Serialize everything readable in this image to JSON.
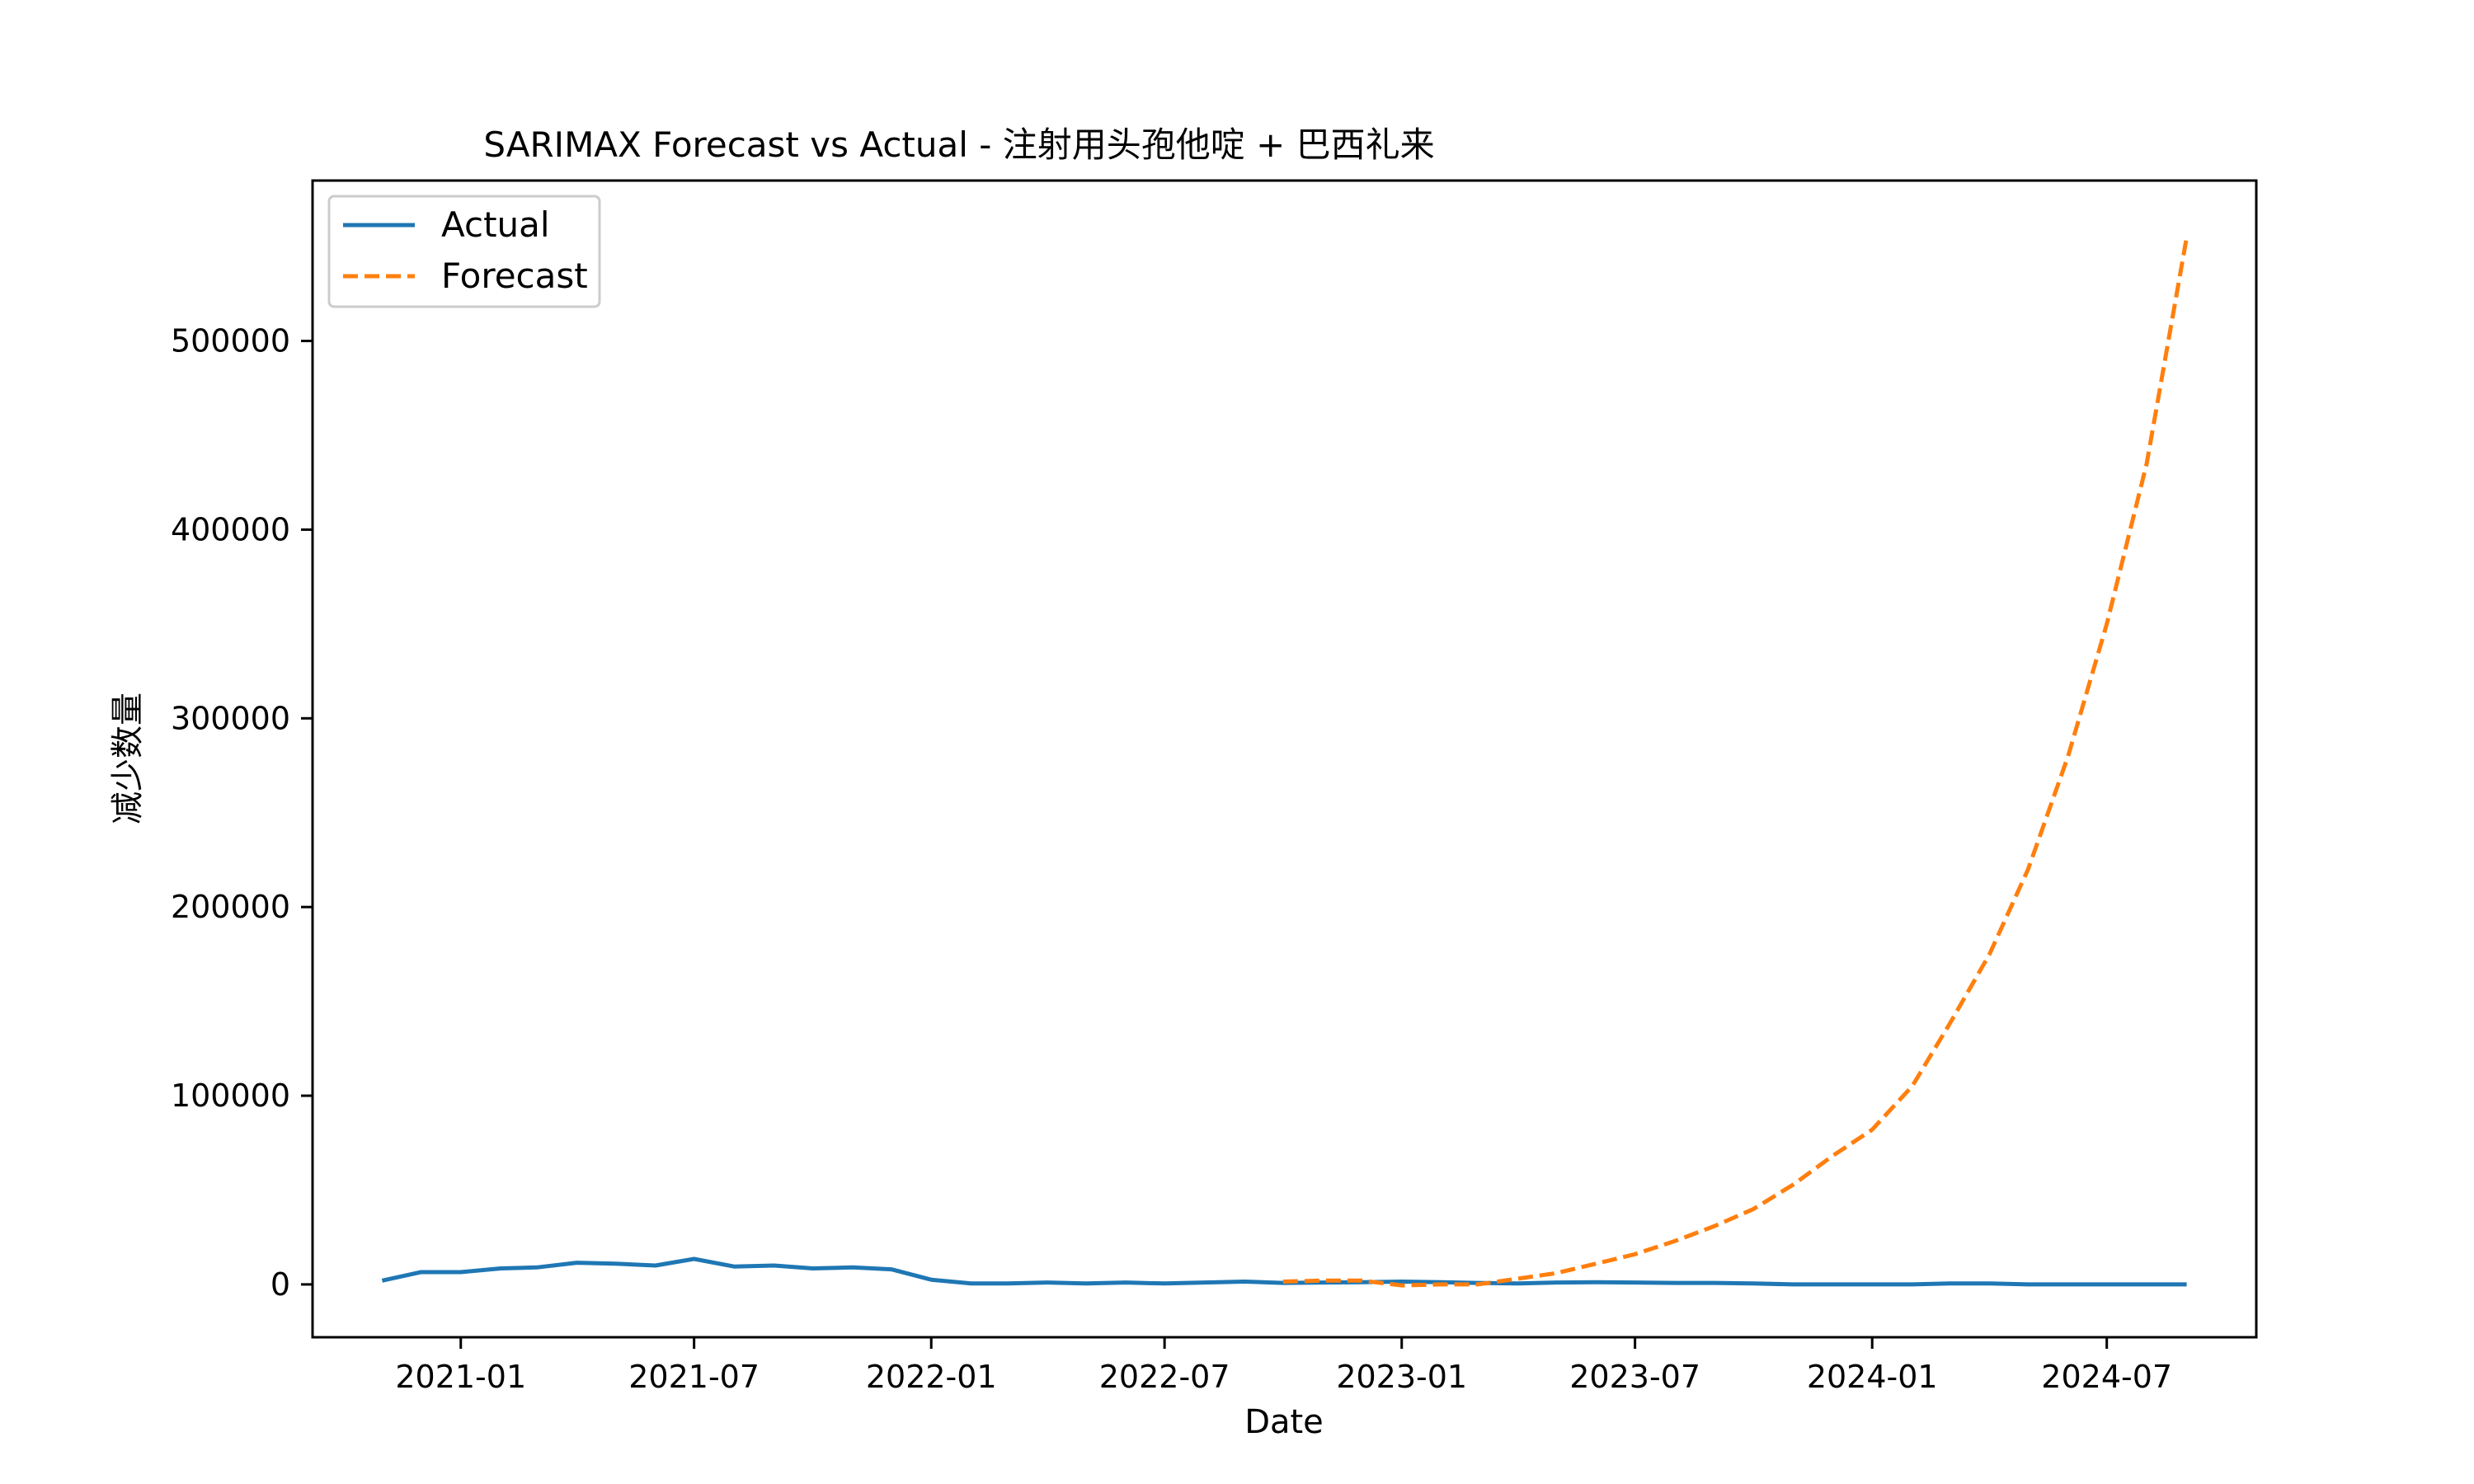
{
  "chart_data": {
    "type": "line",
    "title": "SARIMAX Forecast vs Actual - 注射用头孢他啶 + 巴西礼来",
    "xlabel": "Date",
    "ylabel": "减少数量",
    "x_ticks": [
      "2021-01",
      "2021-07",
      "2022-01",
      "2022-07",
      "2023-01",
      "2023-07",
      "2024-01",
      "2024-07"
    ],
    "y_ticks": [
      "0",
      "100000",
      "200000",
      "300000",
      "400000",
      "500000"
    ],
    "xlim": [
      "2020-09-08",
      "2024-10-25"
    ],
    "ylim": [
      -28000,
      585000
    ],
    "grid": false,
    "legend_position": "top-left",
    "series": [
      {
        "name": "Actual",
        "color": "#1f77b4",
        "style": "solid",
        "x": [
          "2020-11-01",
          "2020-12-01",
          "2021-01-01",
          "2021-02-01",
          "2021-03-01",
          "2021-04-01",
          "2021-05-01",
          "2021-06-01",
          "2021-07-01",
          "2021-08-01",
          "2021-09-01",
          "2021-10-01",
          "2021-11-01",
          "2021-12-01",
          "2022-01-01",
          "2022-02-01",
          "2022-03-01",
          "2022-04-01",
          "2022-05-01",
          "2022-06-01",
          "2022-07-01",
          "2022-08-01",
          "2022-09-01",
          "2022-10-01",
          "2022-11-01",
          "2022-12-01",
          "2023-01-01",
          "2023-02-01",
          "2023-03-01",
          "2023-04-01",
          "2023-05-01",
          "2023-06-01",
          "2023-07-01",
          "2023-08-01",
          "2023-09-01",
          "2023-10-01",
          "2023-11-01",
          "2023-12-01",
          "2024-01-01",
          "2024-02-01",
          "2024-03-01",
          "2024-04-01",
          "2024-05-01",
          "2024-06-01",
          "2024-07-01",
          "2024-08-01",
          "2024-09-01"
        ],
        "y": [
          2000,
          6500,
          6500,
          8500,
          9000,
          11500,
          11000,
          10000,
          13500,
          9500,
          10000,
          8500,
          9000,
          8000,
          2500,
          500,
          500,
          1000,
          500,
          1000,
          500,
          1000,
          1500,
          800,
          1000,
          1200,
          1500,
          1200,
          800,
          500,
          1000,
          1200,
          1000,
          800,
          800,
          500,
          0,
          0,
          0,
          0,
          500,
          500,
          0,
          0,
          0,
          0,
          0
        ]
      },
      {
        "name": "Forecast",
        "color": "#ff7f0e",
        "style": "dashed",
        "x": [
          "2022-10-01",
          "2022-11-01",
          "2022-12-01",
          "2023-01-01",
          "2023-02-01",
          "2023-03-01",
          "2023-04-01",
          "2023-05-01",
          "2023-06-01",
          "2023-07-01",
          "2023-08-01",
          "2023-09-01",
          "2023-10-01",
          "2023-11-01",
          "2023-12-01",
          "2024-01-01",
          "2024-02-01",
          "2024-03-01",
          "2024-04-01",
          "2024-05-01",
          "2024-06-01",
          "2024-07-01",
          "2024-08-01",
          "2024-09-01"
        ],
        "y": [
          1500,
          2000,
          2000,
          -500,
          0,
          0,
          3000,
          6000,
          11000,
          16000,
          23000,
          31000,
          40000,
          53000,
          68000,
          82000,
          105000,
          138000,
          175000,
          220000,
          280000,
          350000,
          435000,
          555000
        ]
      }
    ]
  }
}
